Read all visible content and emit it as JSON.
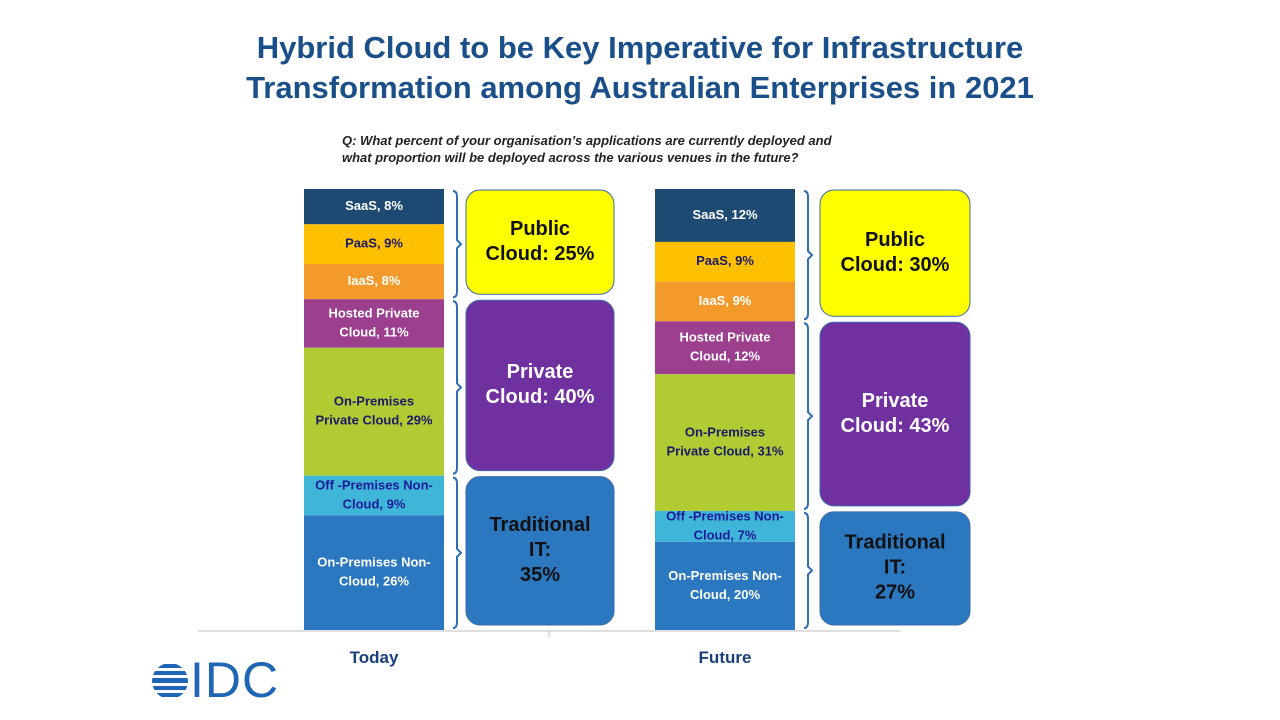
{
  "title_line1": "Hybrid Cloud to be Key Imperative for Infrastructure",
  "title_line2": "Transformation among Australian Enterprises in 2021",
  "question_line1": "Q: What percent of your organisation’s applications are currently deployed and",
  "question_line2": "what proportion will be deployed across the various venues in the future?",
  "logo_text": "IDC",
  "chart_data": {
    "type": "bar",
    "stacked": true,
    "unit": "%",
    "categories": [
      "Today",
      "Future"
    ],
    "series": [
      {
        "name": "SaaS",
        "values": [
          8,
          12
        ],
        "color": "#1d4a72",
        "text_color": "#ffffff",
        "labels": [
          "SaaS, 8%",
          "SaaS, 12%"
        ]
      },
      {
        "name": "PaaS",
        "values": [
          9,
          9
        ],
        "color": "#ffc000",
        "text_color": "#1a1a6a",
        "labels": [
          "PaaS, 9%",
          "PaaS, 9%"
        ]
      },
      {
        "name": "IaaS",
        "values": [
          8,
          9
        ],
        "color": "#f39a2a",
        "text_color": "#ffffff",
        "labels": [
          "IaaS, 8%",
          "IaaS, 9%"
        ]
      },
      {
        "name": "Hosted Private Cloud",
        "values": [
          11,
          12
        ],
        "color": "#9c3f8f",
        "text_color": "#ffffff",
        "labels": [
          "Hosted Private|Cloud, 11%",
          "Hosted Private|Cloud, 12%"
        ]
      },
      {
        "name": "On-Premises Private Cloud",
        "values": [
          29,
          31
        ],
        "color": "#b0cc32",
        "text_color": "#1a1a6a",
        "labels": [
          "On-Premises|Private Cloud, 29%",
          "On-Premises|Private Cloud, 31%"
        ]
      },
      {
        "name": "Off -Premises Non-Cloud",
        "values": [
          9,
          7
        ],
        "color": "#3fb6d8",
        "text_color": "#1a1a9a",
        "labels": [
          "Off -Premises Non-|Cloud, 9%",
          "Off -Premises Non-|Cloud, 7%"
        ]
      },
      {
        "name": "On-Premises Non-Cloud",
        "values": [
          26,
          20
        ],
        "color": "#2b77c0",
        "text_color": "#ffffff",
        "labels": [
          "On-Premises Non-|Cloud, 26%",
          "On-Premises Non-|Cloud, 20%"
        ]
      }
    ],
    "groups": [
      {
        "name": "Public Cloud",
        "members": [
          0,
          1,
          2
        ],
        "values": [
          25,
          30
        ],
        "color": "#ffff00",
        "text_color": "#111111",
        "labels": [
          "Public|Cloud: 25%",
          "Public|Cloud: 30%"
        ]
      },
      {
        "name": "Private Cloud",
        "members": [
          3,
          4
        ],
        "values": [
          40,
          43
        ],
        "color": "#7030a0",
        "text_color": "#ffffff",
        "labels": [
          "Private|Cloud: 40%",
          "Private|Cloud: 43%"
        ]
      },
      {
        "name": "Traditional IT",
        "members": [
          5,
          6
        ],
        "values": [
          35,
          27
        ],
        "color": "#2b77c0",
        "text_color": "#111111",
        "labels": [
          "Traditional|IT:|35%",
          "Traditional|IT:|27%"
        ]
      }
    ],
    "ylim": [
      0,
      100
    ],
    "grid": false,
    "legend": "none"
  }
}
